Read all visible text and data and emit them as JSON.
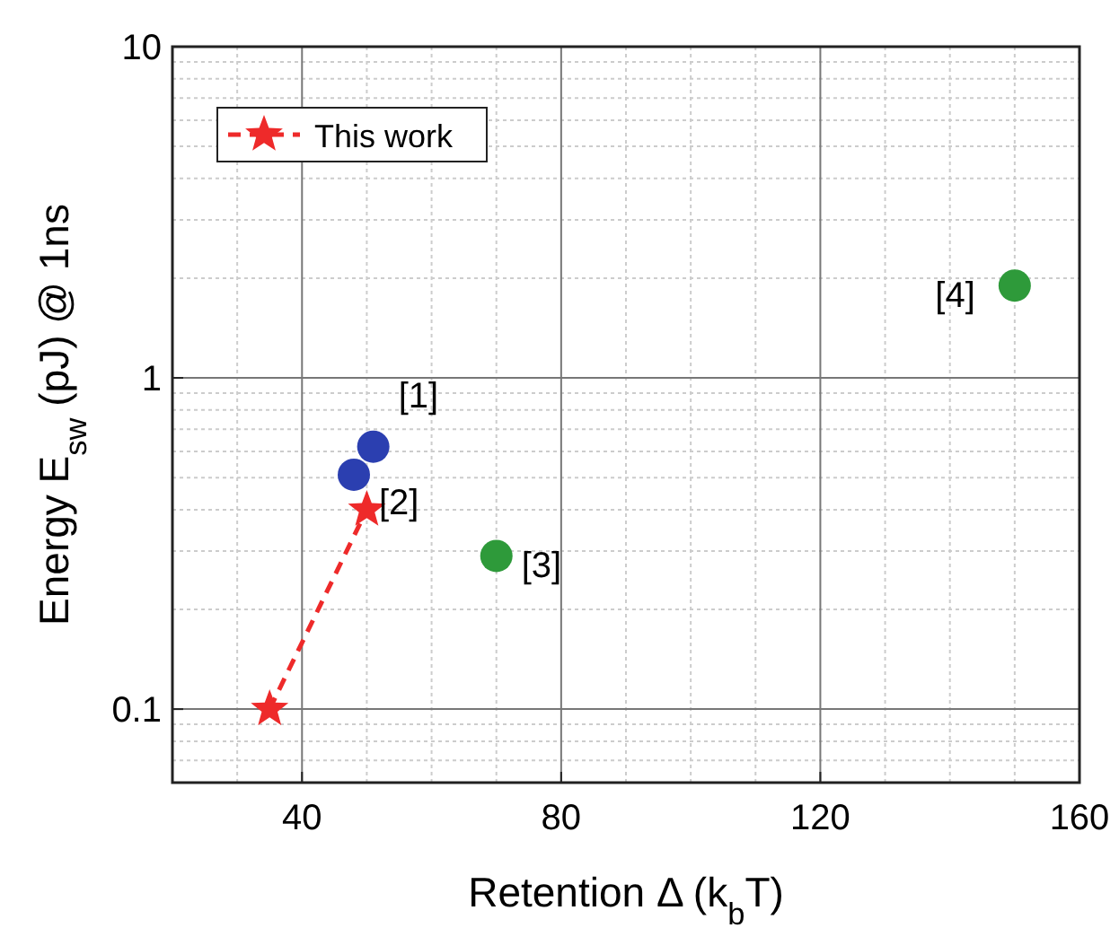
{
  "chart_data": {
    "type": "scatter",
    "xlabel": "Retention Δ (k$_{b}$T)",
    "ylabel": "Energy E$_{sw}$ (pJ) @ 1ns",
    "xlim": [
      20,
      160
    ],
    "xticks": [
      40,
      80,
      120,
      160
    ],
    "ylim": [
      0.06,
      10
    ],
    "yticks": [
      0.1,
      1,
      10
    ],
    "log": "y",
    "grid": true,
    "legend": "top left",
    "series": [
      {
        "name": "This work",
        "type": "line",
        "color": "#ee2a2a",
        "marker": "star",
        "line_style": "dashed",
        "x": [
          35,
          50
        ],
        "values": [
          0.1,
          0.4
        ]
      },
      {
        "color": "#2b3fb0",
        "marker": "circle",
        "x": [
          51
        ],
        "values": [
          0.62
        ]
      },
      {
        "color": "#2b3fb0",
        "marker": "circle",
        "x": [
          48
        ],
        "values": [
          0.51
        ]
      },
      {
        "color": "#2e9a3a",
        "marker": "circle",
        "x": [
          70
        ],
        "values": [
          0.29
        ]
      },
      {
        "color": "#2e9a3a",
        "marker": "circle",
        "x": [
          150
        ],
        "values": [
          1.9
        ]
      }
    ],
    "annotations": [
      {
        "text": "[1]",
        "x": 51,
        "y": 0.62
      },
      {
        "text": "[2]",
        "x": 48,
        "y": 0.51
      },
      {
        "text": "[3]",
        "x": 70,
        "y": 0.29
      },
      {
        "text": "[4]",
        "x": 150,
        "y": 1.9
      }
    ]
  }
}
